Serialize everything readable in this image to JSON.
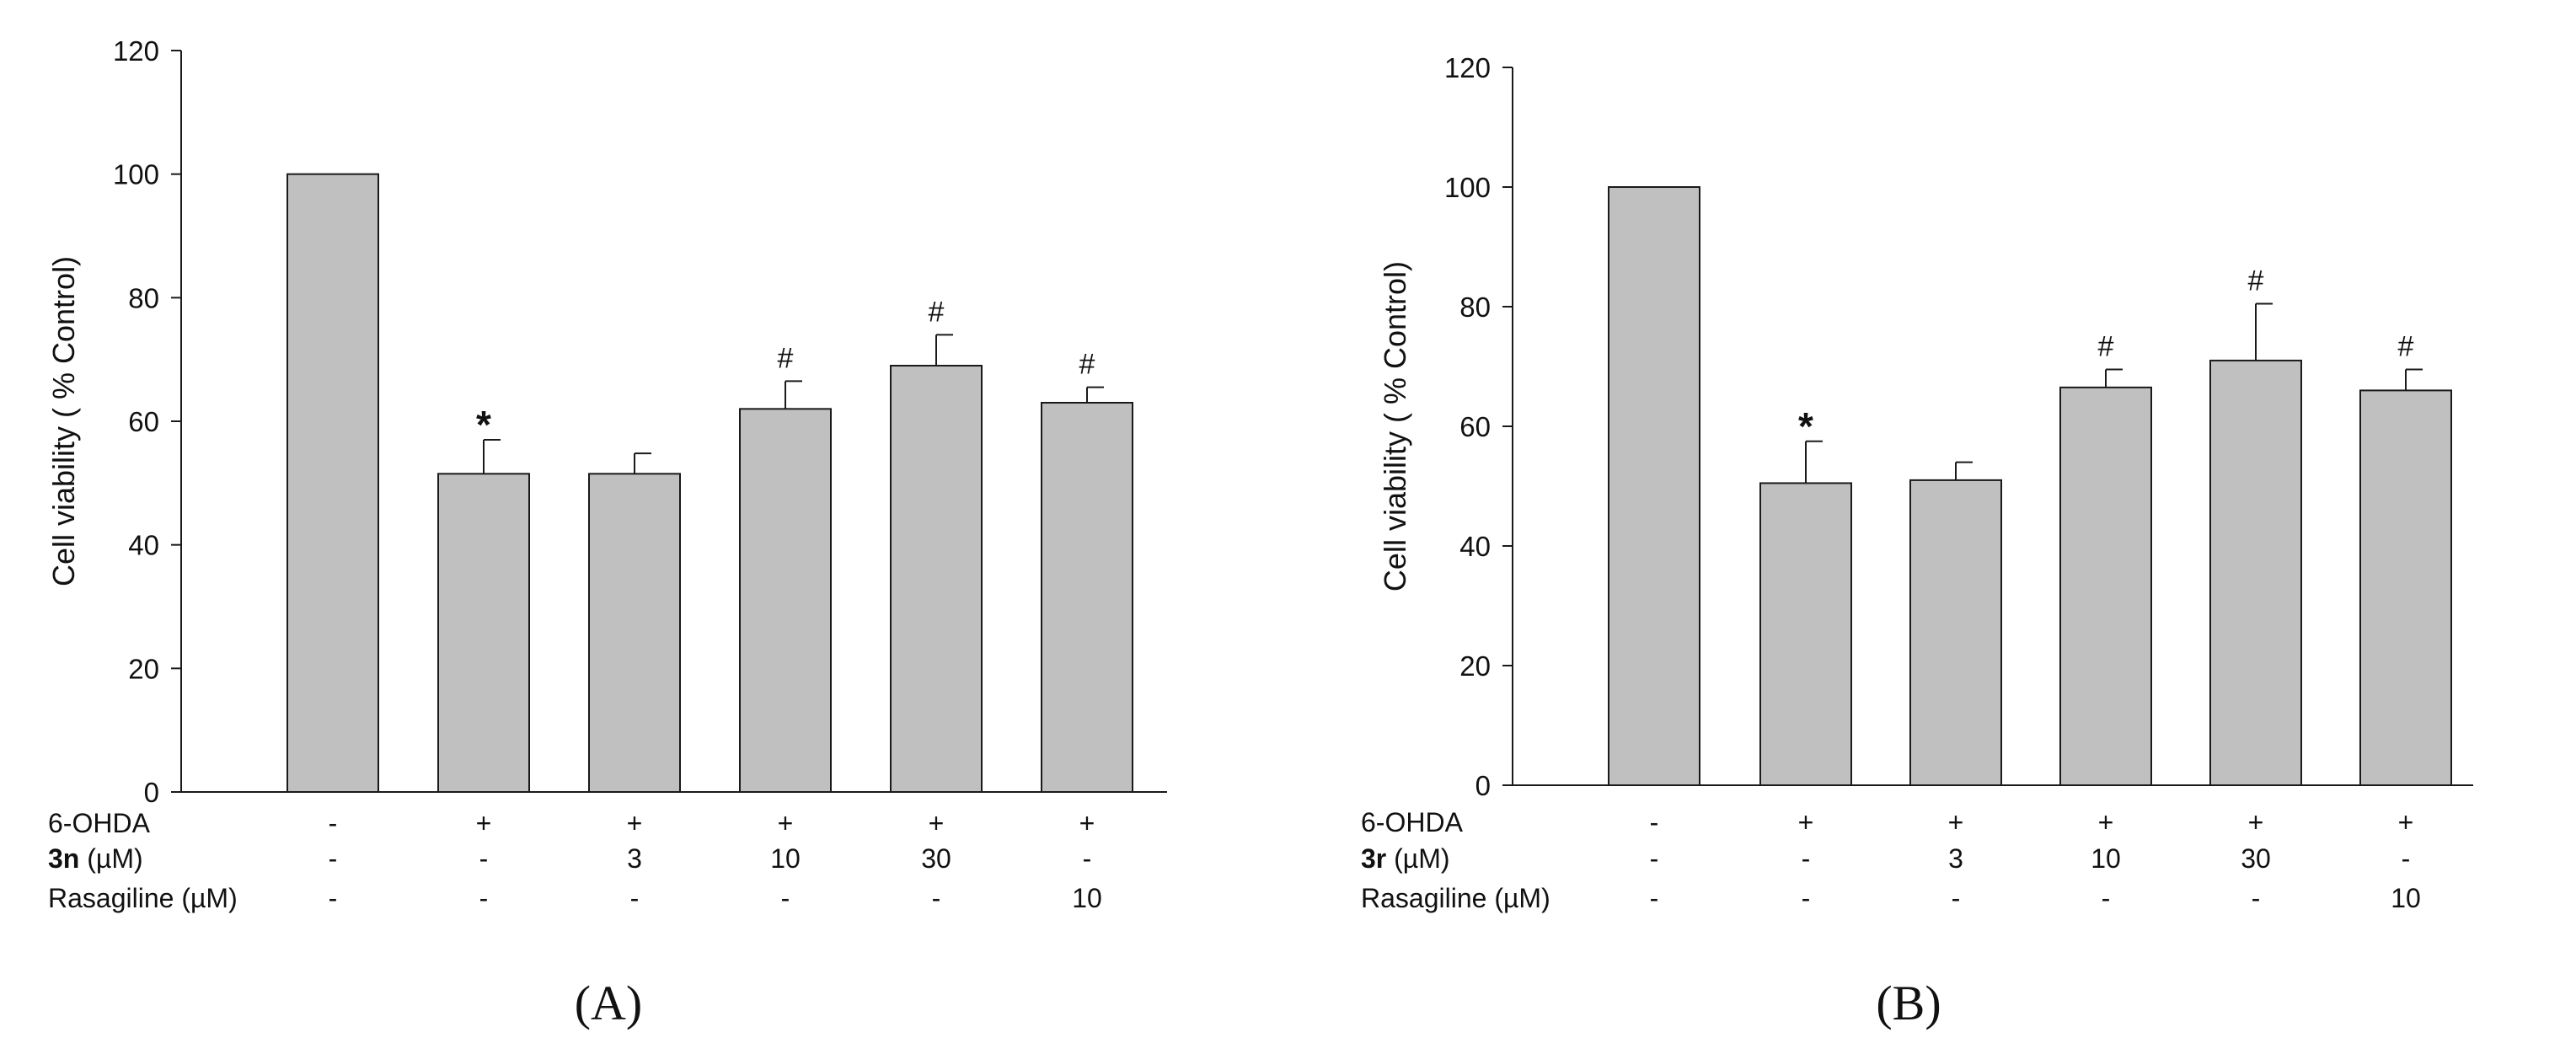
{
  "chart_data": [
    {
      "type": "bar",
      "panel_label": "(A)",
      "ylabel": "Cell viability ( % Control)",
      "ylim": [
        0,
        120
      ],
      "yticks": [
        "0",
        "20",
        "40",
        "60",
        "80",
        "100",
        "120"
      ],
      "values": [
        100,
        51.5,
        51.5,
        62,
        69,
        63
      ],
      "errors": [
        0,
        5.5,
        3.3,
        4.5,
        5,
        2.5
      ],
      "annotations": [
        "",
        "*",
        "",
        "#",
        "#",
        "#"
      ],
      "treatments": [
        {
          "label": "6-OHDA",
          "prefix_bold": "",
          "values": [
            "-",
            "+",
            "+",
            "+",
            "+",
            "+"
          ]
        },
        {
          "label": " (µM)",
          "prefix_bold": "3n",
          "values": [
            "-",
            "-",
            "3",
            "10",
            "30",
            "-"
          ]
        },
        {
          "label": "Rasagiline (µM)",
          "prefix_bold": "",
          "values": [
            "-",
            "-",
            "-",
            "-",
            "-",
            "10"
          ]
        }
      ]
    },
    {
      "type": "bar",
      "panel_label": "(B)",
      "ylabel": "Cell viability ( % Control)",
      "ylim": [
        0,
        120
      ],
      "yticks": [
        "0",
        "20",
        "40",
        "60",
        "80",
        "100",
        "120"
      ],
      "values": [
        100,
        50.5,
        51,
        66.5,
        71,
        66
      ],
      "errors": [
        0,
        7,
        3,
        3,
        9.5,
        3.5
      ],
      "annotations": [
        "",
        "*",
        "",
        "#",
        "#",
        "#"
      ],
      "treatments": [
        {
          "label": "6-OHDA",
          "prefix_bold": "",
          "values": [
            "-",
            "+",
            "+",
            "+",
            "+",
            "+"
          ]
        },
        {
          "label": " (µM)",
          "prefix_bold": "3r",
          "values": [
            "-",
            "-",
            "3",
            "10",
            "30",
            "-"
          ]
        },
        {
          "label": "Rasagiline (µM)",
          "prefix_bold": "",
          "values": [
            "-",
            "-",
            "-",
            "-",
            "-",
            "10"
          ]
        }
      ]
    }
  ],
  "colors": {
    "bar_fill": "#c0c0c0",
    "bar_stroke": "#1a1a1a",
    "axis": "#1a1a1a"
  }
}
